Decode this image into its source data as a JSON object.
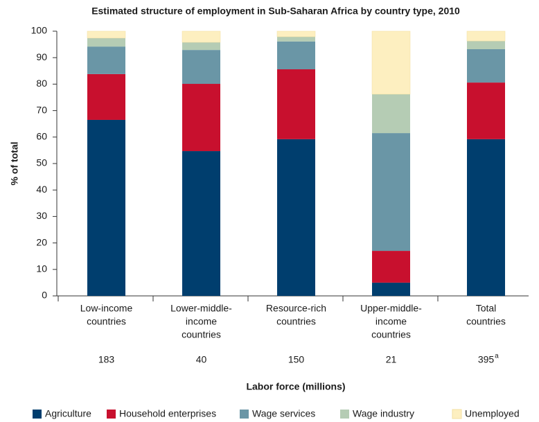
{
  "chart_data": {
    "type": "stacked_bar",
    "title": "Estimated structure of employment in Sub-Saharan Africa by country type, 2010",
    "y_label": "% of total",
    "x_label": "Labor force (millions)",
    "categories": [
      [
        "Low-income",
        "countries"
      ],
      [
        "Lower-middle-",
        "income",
        "countries"
      ],
      [
        "Resource-rich",
        "countries"
      ],
      [
        "Upper-middle-",
        "income",
        "countries"
      ],
      [
        "Total",
        "countries"
      ]
    ],
    "labor_force": [
      183,
      40,
      150,
      21,
      395
    ],
    "labor_force_note": {
      "index": 4,
      "mark": "a"
    },
    "series": [
      {
        "name": "Agriculture",
        "color": "#003e6e",
        "values": [
          66.5,
          54.7,
          59.2,
          5.0,
          59.2
        ]
      },
      {
        "name": "Household enterprises",
        "color": "#c8102e",
        "values": [
          17.3,
          25.4,
          26.4,
          12.0,
          21.4
        ]
      },
      {
        "name": "Wage services",
        "color": "#6a96a6",
        "values": [
          10.4,
          12.8,
          10.5,
          44.5,
          12.6
        ]
      },
      {
        "name": "Wage industry",
        "color": "#b5ccb4",
        "values": [
          3.2,
          2.9,
          1.8,
          14.7,
          3.1
        ]
      },
      {
        "name": "Unemployed",
        "color": "#fdefc0",
        "values": [
          2.6,
          4.2,
          2.1,
          23.8,
          3.7
        ]
      }
    ],
    "ylim": [
      0,
      100
    ],
    "yticks": [
      0,
      10,
      20,
      30,
      40,
      50,
      60,
      70,
      80,
      90,
      100
    ],
    "grid": false,
    "legend": "bottom"
  }
}
